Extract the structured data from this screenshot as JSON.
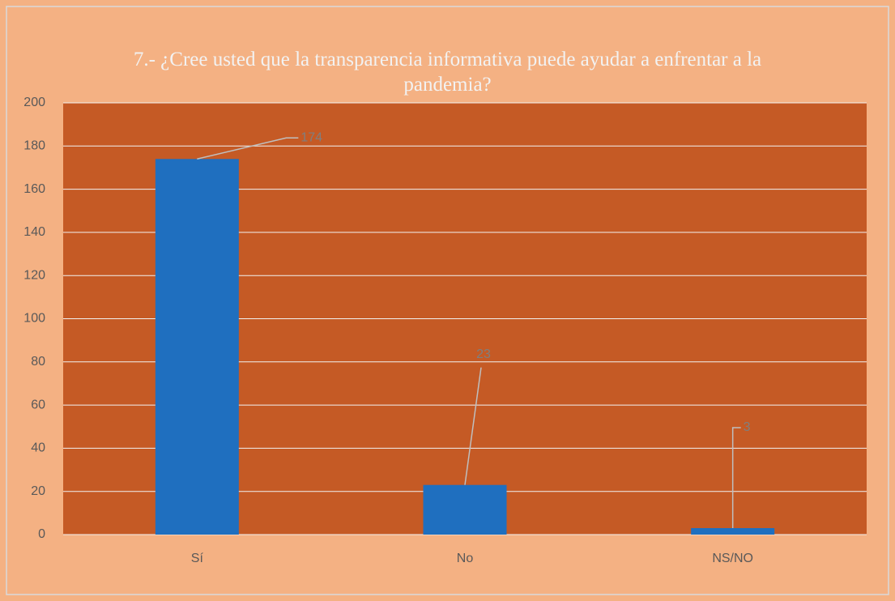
{
  "chart_data": {
    "type": "bar",
    "title": "7.- ¿Cree usted que la transparencia informativa puede ayudar a enfrentar a la pandemia?",
    "categories": [
      "Sí",
      "No",
      "NS/NO"
    ],
    "values": [
      174,
      23,
      3
    ],
    "color": "#1f6fbf",
    "plot_background": "#c55a25",
    "background": "#f4b183",
    "ylim": [
      0,
      200
    ],
    "yticks": [
      0,
      20,
      40,
      60,
      80,
      100,
      120,
      140,
      160,
      180,
      200
    ],
    "grid": true
  }
}
